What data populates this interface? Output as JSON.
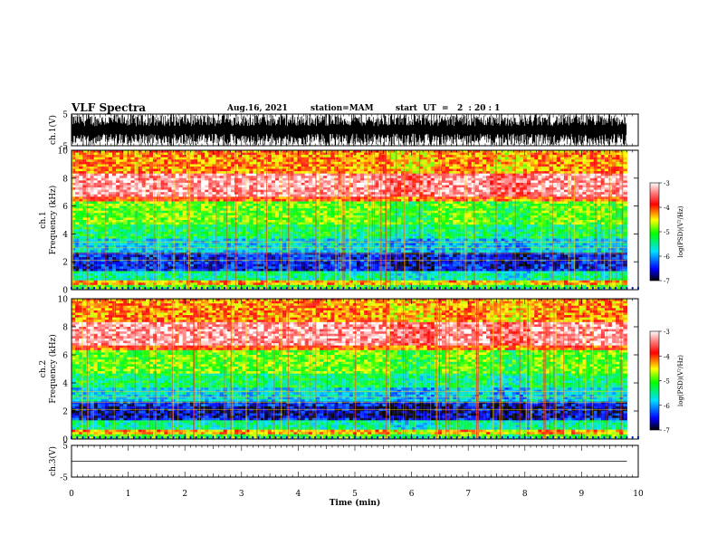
{
  "header": {
    "title": "VLF Spectra",
    "date": "Aug.16, 2021",
    "station": "station=MAM",
    "start_time": "start  UT  =   2  : 20 : 1"
  },
  "chart_data": [
    {
      "type": "line",
      "panel": "waveform-ch1",
      "ylabel": "ch.1(V)",
      "ylim": [
        -5,
        5
      ],
      "yticks": [
        "5",
        "-5"
      ],
      "xlim": [
        0,
        10
      ],
      "color": "#000000"
    },
    {
      "type": "heatmap",
      "panel": "spectrogram-ch1",
      "ylabel": "ch.1\nFrequency (kHz)",
      "ylim": [
        0,
        10
      ],
      "yticks": [
        "0",
        "2",
        "4",
        "6",
        "8",
        "10"
      ],
      "xlim": [
        0,
        9.8
      ],
      "colorbar": {
        "label": "log(PSD)(V²/Hz)",
        "range": [
          -7,
          -3
        ],
        "ticks": [
          "-3",
          "-4",
          "-5",
          "-6",
          "-7"
        ]
      }
    },
    {
      "type": "heatmap",
      "panel": "spectrogram-ch2",
      "ylabel": "ch.2\nFrequency (kHz)",
      "ylim": [
        0,
        10
      ],
      "yticks": [
        "0",
        "2",
        "4",
        "6",
        "8",
        "10"
      ],
      "xlim": [
        0,
        9.8
      ],
      "colorbar": {
        "label": "log(PSD)(V²/Hz)",
        "range": [
          -7,
          -3
        ],
        "ticks": [
          "-3",
          "-4",
          "-5",
          "-6",
          "-7"
        ]
      }
    },
    {
      "type": "line",
      "panel": "waveform-ch3",
      "ylabel": "ch.3(V)",
      "ylim": [
        -5,
        5
      ],
      "yticks": [
        "5",
        "-5"
      ],
      "values": [
        0,
        0
      ],
      "x": [
        0,
        9.8
      ],
      "color": "#000000"
    }
  ],
  "xaxis": {
    "label": "Time  (min)",
    "ticks": [
      "0",
      "1",
      "2",
      "3",
      "4",
      "5",
      "6",
      "7",
      "8",
      "9",
      "10"
    ]
  }
}
